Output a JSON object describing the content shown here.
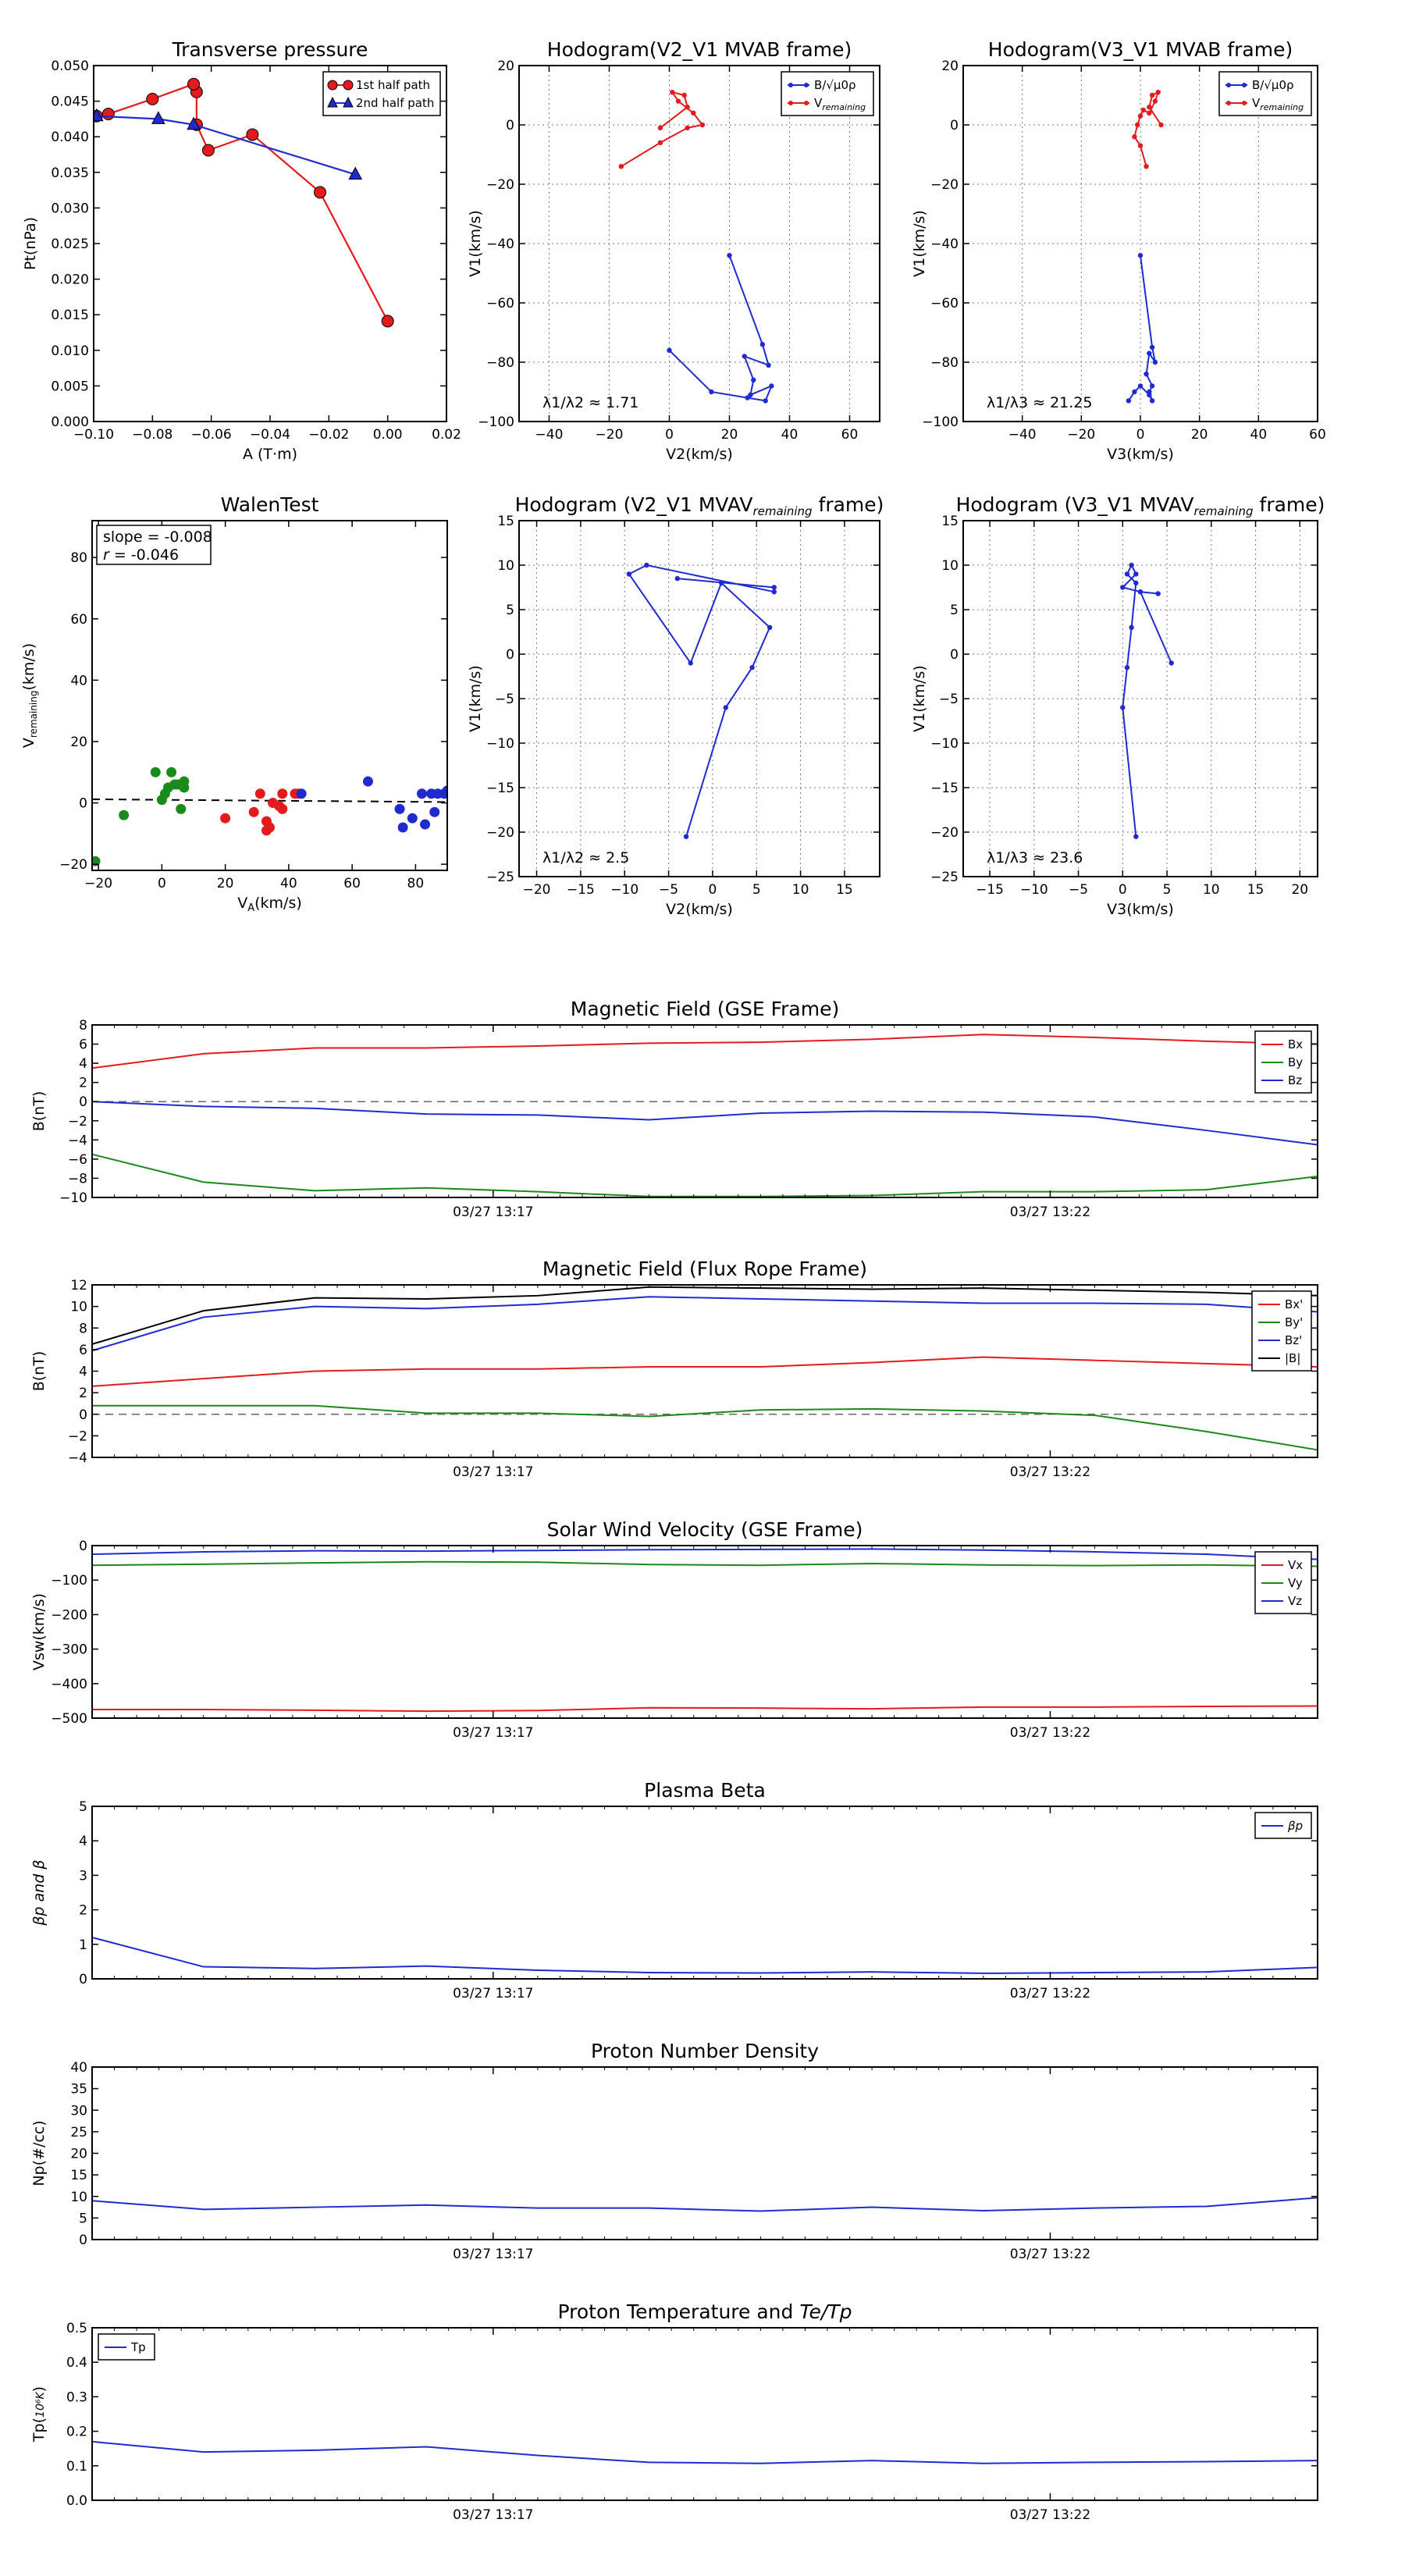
{
  "chart_data": [
    {
      "id": "tp",
      "type": "line",
      "title": "Transverse pressure",
      "xlabel": "A (T·m)",
      "ylabel": "Pt(nPa)",
      "xlim": [
        -0.1,
        0.02
      ],
      "ylim": [
        0.0,
        0.05
      ],
      "grid": false,
      "xticks": [
        "−0.10",
        "−0.08",
        "−0.06",
        "−0.04",
        "−0.02",
        "0.00",
        "0.02"
      ],
      "yticks": [
        "0.000",
        "0.005",
        "0.010",
        "0.015",
        "0.020",
        "0.025",
        "0.030",
        "0.035",
        "0.040",
        "0.045",
        "0.050"
      ],
      "legend_position": "top-right",
      "series": [
        {
          "name": "1st half path",
          "color": "#e41a1c",
          "marker": "circle",
          "x": [
            0.0,
            -0.023,
            -0.046,
            -0.061,
            -0.065,
            -0.065,
            -0.066,
            -0.08,
            -0.095,
            -0.099
          ],
          "y": [
            0.0141,
            0.0322,
            0.0403,
            0.0381,
            0.0417,
            0.0463,
            0.0474,
            0.0453,
            0.0432,
            0.0429
          ]
        },
        {
          "name": "2nd half path",
          "color": "#1f2bd1",
          "marker": "triangle",
          "x": [
            -0.099,
            -0.078,
            -0.066,
            -0.011
          ],
          "y": [
            0.0429,
            0.0425,
            0.0417,
            0.0347
          ]
        }
      ]
    },
    {
      "id": "h1",
      "type": "line",
      "title": "Hodogram(V2_V1 MVAB frame)",
      "xlabel": "V2(km/s)",
      "ylabel": "V1(km/s)",
      "xlim": [
        -50,
        70
      ],
      "ylim": [
        -100,
        20
      ],
      "grid": true,
      "xticks": [
        "−40",
        "−20",
        "0",
        "20",
        "40",
        "60"
      ],
      "yticks": [
        "−100",
        "−80",
        "−60",
        "−40",
        "−20",
        "0",
        "20"
      ],
      "legend_position": "top-right",
      "annotation": "λ1/λ2 ≈ 1.71",
      "series": [
        {
          "name": "B/√μ0ρ",
          "color": "#1f2bd1",
          "x": [
            20,
            31,
            33,
            25,
            28,
            27,
            34,
            32,
            26,
            14,
            0
          ],
          "y": [
            -44,
            -74,
            -81,
            -78,
            -86,
            -91,
            -88,
            -93,
            -92,
            -90,
            -76
          ]
        },
        {
          "name": "Vremaining",
          "color": "#e41a1c",
          "x": [
            -16,
            -3,
            6,
            11,
            8,
            3,
            1,
            5,
            6,
            -3
          ],
          "y": [
            -14,
            -6,
            -1,
            0,
            4,
            8,
            11,
            10,
            6,
            -1
          ]
        }
      ]
    },
    {
      "id": "h2",
      "type": "line",
      "title": "Hodogram(V3_V1 MVAB frame)",
      "xlabel": "V3(km/s)",
      "ylabel": "V1(km/s)",
      "xlim": [
        -60,
        60
      ],
      "ylim": [
        -100,
        20
      ],
      "grid": true,
      "xticks": [
        "−40",
        "−20",
        "0",
        "20",
        "40",
        "60"
      ],
      "yticks": [
        "−100",
        "−80",
        "−60",
        "−40",
        "−20",
        "0",
        "20"
      ],
      "legend_position": "top-right",
      "annotation": "λ1/λ3 ≈ 21.25",
      "series": [
        {
          "name": "B/√μ0ρ",
          "color": "#1f2bd1",
          "x": [
            0,
            4,
            5,
            3,
            2,
            4,
            3,
            4,
            3,
            0,
            -2,
            -4
          ],
          "y": [
            -44,
            -75,
            -80,
            -77,
            -84,
            -88,
            -90,
            -93,
            -91,
            -88,
            -90,
            -93
          ]
        },
        {
          "name": "Vremaining",
          "color": "#e41a1c",
          "x": [
            2,
            0,
            -2,
            -1,
            0,
            1,
            3,
            5,
            6,
            4,
            3,
            7
          ],
          "y": [
            -14,
            -7,
            -4,
            0,
            3,
            5,
            4,
            8,
            11,
            10,
            6,
            0
          ]
        }
      ]
    },
    {
      "id": "walen",
      "type": "scatter",
      "title": "WalenTest",
      "xlabel": "VA(km/s)",
      "ylabel": "Vremaining(km/s)",
      "xlim": [
        -22,
        90
      ],
      "ylim": [
        -22,
        92
      ],
      "grid": false,
      "xticks": [
        "−20",
        "0",
        "20",
        "40",
        "60",
        "80"
      ],
      "yticks": [
        "−20",
        "0",
        "20",
        "40",
        "60",
        "80"
      ],
      "annotation": [
        "slope = -0.008",
        "r = -0.046"
      ],
      "fit_line": {
        "slope": -0.008,
        "intercept": 1.0,
        "style": "dashed"
      },
      "series": [
        {
          "color": "#1a8a1a",
          "x": [
            -21,
            -12,
            -2,
            0,
            1,
            2,
            3,
            4,
            5,
            6,
            7,
            7,
            6
          ],
          "y": [
            -19,
            -4,
            10,
            1,
            3,
            5,
            10,
            6,
            6,
            6,
            7,
            5,
            -2
          ]
        },
        {
          "color": "#e41a1c",
          "x": [
            20,
            29,
            31,
            33,
            33,
            34,
            35,
            37,
            38,
            38,
            42,
            43
          ],
          "y": [
            -5,
            -3,
            3,
            -6,
            -9,
            -8,
            0,
            -1,
            3,
            -2,
            3,
            3
          ]
        },
        {
          "color": "#1f2bd1",
          "x": [
            44,
            65,
            75,
            76,
            79,
            82,
            83,
            85,
            86,
            87,
            89,
            90
          ],
          "y": [
            3,
            7,
            -2,
            -8,
            -5,
            3,
            -7,
            3,
            -3,
            3,
            3,
            4
          ]
        }
      ]
    },
    {
      "id": "h3",
      "type": "line",
      "title": "Hodogram (V2_V1 MVAVremaining frame)",
      "xlabel": "V2(km/s)",
      "ylabel": "V1(km/s)",
      "xlim": [
        -22,
        19
      ],
      "ylim": [
        -25,
        15
      ],
      "grid": true,
      "xticks": [
        "−20",
        "−15",
        "−10",
        "−5",
        "0",
        "5",
        "10",
        "15"
      ],
      "yticks": [
        "−25",
        "−20",
        "−15",
        "−10",
        "−5",
        "0",
        "5",
        "10",
        "15"
      ],
      "annotation": "λ1/λ2 ≈ 2.5",
      "series": [
        {
          "name": "",
          "color": "#1f2bd1",
          "x": [
            -3,
            1.5,
            4.5,
            6.5,
            1,
            -2.5,
            -9.5,
            -7.5,
            7,
            7,
            -4
          ],
          "y": [
            -20.5,
            -6,
            -1.5,
            3,
            8,
            -1,
            9,
            10,
            7,
            7.5,
            8.5
          ]
        }
      ]
    },
    {
      "id": "h4",
      "type": "line",
      "title": "Hodogram (V3_V1 MVAVremaining frame)",
      "xlabel": "V3(km/s)",
      "ylabel": "V1(km/s)",
      "xlim": [
        -18,
        22
      ],
      "ylim": [
        -25,
        15
      ],
      "grid": true,
      "xticks": [
        "−15",
        "−10",
        "−5",
        "0",
        "5",
        "10",
        "15",
        "20"
      ],
      "yticks": [
        "−25",
        "−20",
        "−15",
        "−10",
        "−5",
        "0",
        "5",
        "10",
        "15"
      ],
      "annotation": "λ1/λ3 ≈ 23.6",
      "series": [
        {
          "name": "",
          "color": "#1f2bd1",
          "x": [
            1.5,
            0,
            0.5,
            1,
            1.5,
            0.5,
            1,
            1.5,
            0,
            2,
            5.5,
            2,
            4
          ],
          "y": [
            -20.5,
            -6,
            -1.5,
            3,
            8,
            9,
            10,
            9,
            7.5,
            7,
            -1,
            7,
            6.8
          ]
        }
      ]
    },
    {
      "id": "bgse",
      "type": "line",
      "title": "Magnetic Field (GSE Frame)",
      "ylabel": "B(nT)",
      "ylim": [
        -10,
        8
      ],
      "xlim": [
        0,
        11
      ],
      "xtick_pos": [
        3.6,
        8.6
      ],
      "xtick_labels": [
        "03/27 13:17",
        "03/27 13:22"
      ],
      "yticks": [
        "−10",
        "−8",
        "−6",
        "−4",
        "−2",
        "0",
        "2",
        "4",
        "6",
        "8"
      ],
      "zero_line": true,
      "legend_position": "top-right",
      "series": [
        {
          "name": "Bx",
          "color": "#e41a1c",
          "x": [
            0,
            1,
            2,
            3,
            4,
            5,
            6,
            7,
            8,
            9,
            10,
            11
          ],
          "y": [
            3.5,
            5,
            5.6,
            5.6,
            5.8,
            6.1,
            6.2,
            6.5,
            7,
            6.7,
            6.3,
            6
          ]
        },
        {
          "name": "By",
          "color": "#1a8a1a",
          "x": [
            0,
            1,
            2,
            3,
            4,
            5,
            6,
            7,
            8,
            9,
            10,
            11
          ],
          "y": [
            -5.5,
            -8.4,
            -9.3,
            -9,
            -9.4,
            -9.9,
            -9.9,
            -9.8,
            -9.4,
            -9.4,
            -9.2,
            -7.8
          ]
        },
        {
          "name": "Bz",
          "color": "#1f2bd1",
          "x": [
            0,
            1,
            2,
            3,
            4,
            5,
            6,
            7,
            8,
            9,
            10,
            11
          ],
          "y": [
            0,
            -0.5,
            -0.7,
            -1.3,
            -1.4,
            -1.9,
            -1.2,
            -1,
            -1.1,
            -1.6,
            -3,
            -4.5
          ]
        }
      ]
    },
    {
      "id": "bfr",
      "type": "line",
      "title": "Magnetic Field (Flux Rope Frame)",
      "ylabel": "B(nT)",
      "ylim": [
        -4,
        12
      ],
      "xlim": [
        0,
        11
      ],
      "xtick_pos": [
        3.6,
        8.6
      ],
      "xtick_labels": [
        "03/27 13:17",
        "03/27 13:22"
      ],
      "yticks": [
        "−4",
        "−2",
        "0",
        "2",
        "4",
        "6",
        "8",
        "10",
        "12"
      ],
      "zero_line": true,
      "legend_position": "top-right",
      "series": [
        {
          "name": "Bx'",
          "color": "#e41a1c",
          "x": [
            0,
            1,
            2,
            3,
            4,
            5,
            6,
            7,
            8,
            9,
            10,
            11
          ],
          "y": [
            2.6,
            3.3,
            4,
            4.2,
            4.2,
            4.4,
            4.4,
            4.8,
            5.3,
            5,
            4.7,
            4.4
          ]
        },
        {
          "name": "By'",
          "color": "#1a8a1a",
          "x": [
            0,
            1,
            2,
            3,
            4,
            5,
            6,
            7,
            8,
            9,
            10,
            11
          ],
          "y": [
            0.8,
            0.8,
            0.8,
            0.1,
            0.1,
            -0.2,
            0.4,
            0.5,
            0.3,
            -0.1,
            -1.6,
            -3.3
          ]
        },
        {
          "name": "Bz'",
          "color": "#1f2bd1",
          "x": [
            0,
            1,
            2,
            3,
            4,
            5,
            6,
            7,
            8,
            9,
            10,
            11
          ],
          "y": [
            5.9,
            9,
            10,
            9.8,
            10.2,
            10.9,
            10.7,
            10.5,
            10.3,
            10.3,
            10.2,
            9.5
          ]
        },
        {
          "name": "|B|",
          "color": "#000000",
          "x": [
            0,
            1,
            2,
            3,
            4,
            5,
            6,
            7,
            8,
            9,
            10,
            11
          ],
          "y": [
            6.5,
            9.6,
            10.8,
            10.7,
            11,
            11.8,
            11.7,
            11.6,
            11.7,
            11.5,
            11.3,
            11
          ]
        }
      ]
    },
    {
      "id": "vsw",
      "type": "line",
      "title": "Solar Wind Velocity (GSE Frame)",
      "ylabel": "Vsw(km/s)",
      "ylim": [
        -500,
        0
      ],
      "xlim": [
        0,
        11
      ],
      "xtick_pos": [
        3.6,
        8.6
      ],
      "xtick_labels": [
        "03/27 13:17",
        "03/27 13:22"
      ],
      "yticks": [
        "−500",
        "−400",
        "−300",
        "−200",
        "−100",
        "0"
      ],
      "legend_position": "top-right",
      "series": [
        {
          "name": "Vx",
          "color": "#e41a1c",
          "x": [
            0,
            1,
            2,
            3,
            4,
            5,
            6,
            7,
            8,
            9,
            10,
            11
          ],
          "y": [
            -475,
            -475,
            -477,
            -480,
            -478,
            -470,
            -471,
            -473,
            -468,
            -468,
            -466,
            -465
          ]
        },
        {
          "name": "Vy",
          "color": "#1a8a1a",
          "x": [
            0,
            1,
            2,
            3,
            4,
            5,
            6,
            7,
            8,
            9,
            10,
            11
          ],
          "y": [
            -57,
            -54,
            -50,
            -47,
            -48,
            -55,
            -57,
            -52,
            -56,
            -58,
            -56,
            -60
          ]
        },
        {
          "name": "Vz",
          "color": "#1f2bd1",
          "x": [
            0,
            1,
            2,
            3,
            4,
            5,
            6,
            7,
            8,
            9,
            10,
            11
          ],
          "y": [
            -25,
            -18,
            -15,
            -16,
            -14,
            -12,
            -11,
            -10,
            -13,
            -18,
            -25,
            -40
          ]
        }
      ]
    },
    {
      "id": "beta",
      "type": "line",
      "title": "Plasma Beta",
      "ylabel": "βp and β",
      "ylim": [
        0,
        5
      ],
      "xlim": [
        0,
        11
      ],
      "xtick_pos": [
        3.6,
        8.6
      ],
      "xtick_labels": [
        "03/27 13:17",
        "03/27 13:22"
      ],
      "yticks": [
        "0",
        "1",
        "2",
        "3",
        "4",
        "5"
      ],
      "legend_position": "top-right",
      "series": [
        {
          "name": "βp",
          "color": "#1f2bd1",
          "x": [
            0,
            1,
            2,
            3,
            4,
            5,
            6,
            7,
            8,
            9,
            10,
            11
          ],
          "y": [
            1.2,
            0.35,
            0.3,
            0.37,
            0.25,
            0.18,
            0.17,
            0.2,
            0.16,
            0.18,
            0.2,
            0.33
          ]
        }
      ]
    },
    {
      "id": "np",
      "type": "line",
      "title": "Proton Number Density",
      "ylabel": "Np(#/cc)",
      "ylim": [
        0,
        40
      ],
      "xlim": [
        0,
        11
      ],
      "xtick_pos": [
        3.6,
        8.6
      ],
      "xtick_labels": [
        "03/27 13:17",
        "03/27 13:22"
      ],
      "yticks": [
        "0",
        "5",
        "10",
        "15",
        "20",
        "25",
        "30",
        "35",
        "40"
      ],
      "series": [
        {
          "name": "",
          "color": "#1f2bd1",
          "x": [
            0,
            1,
            2,
            3,
            4,
            5,
            6,
            7,
            8,
            9,
            10,
            11
          ],
          "y": [
            9,
            7,
            7.5,
            8,
            7.3,
            7.3,
            6.6,
            7.5,
            6.7,
            7.3,
            7.7,
            9.7
          ]
        }
      ]
    },
    {
      "id": "tpr",
      "type": "line",
      "title": "Proton Temperature and Te/Tp",
      "ylabel": "Tp(10^6K)",
      "ylim": [
        0,
        0.5
      ],
      "xlim": [
        0,
        11
      ],
      "xtick_pos": [
        3.6,
        8.6
      ],
      "xtick_labels": [
        "03/27 13:17",
        "03/27 13:22"
      ],
      "yticks": [
        "0.0",
        "0.1",
        "0.2",
        "0.3",
        "0.4",
        "0.5"
      ],
      "legend_position": "top-left",
      "series": [
        {
          "name": "Tp",
          "color": "#1f2bd1",
          "x": [
            0,
            1,
            2,
            3,
            4,
            5,
            6,
            7,
            8,
            9,
            10,
            11
          ],
          "y": [
            0.17,
            0.14,
            0.145,
            0.155,
            0.13,
            0.11,
            0.107,
            0.115,
            0.107,
            0.11,
            0.112,
            0.115
          ]
        }
      ]
    }
  ]
}
